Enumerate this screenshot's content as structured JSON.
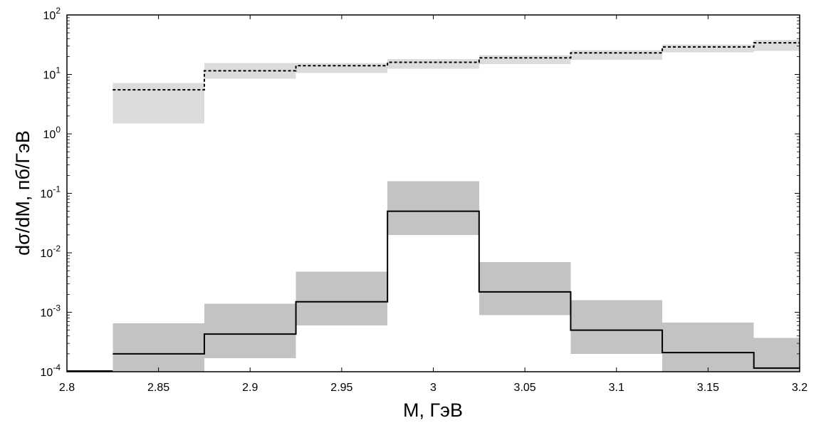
{
  "chart_data": {
    "type": "step",
    "xlabel": "M, ГэВ",
    "ylabel": "dσ/dM, пб/ГэВ",
    "xlim": [
      2.8,
      3.2
    ],
    "ylim": [
      0.0001,
      100
    ],
    "yscale": "log",
    "x_ticks": [
      "2.8",
      "2.85",
      "2.9",
      "2.95",
      "3",
      "3.05",
      "3.1",
      "3.15",
      "3.2"
    ],
    "y_ticks": [
      {
        "base": "10",
        "exp": "-4"
      },
      {
        "base": "10",
        "exp": "-3"
      },
      {
        "base": "10",
        "exp": "-2"
      },
      {
        "base": "10",
        "exp": "-1"
      },
      {
        "base": "10",
        "exp": "0"
      },
      {
        "base": "10",
        "exp": "1"
      },
      {
        "base": "10",
        "exp": "2"
      }
    ],
    "bin_edges": [
      2.825,
      2.875,
      2.925,
      2.975,
      3.025,
      3.075,
      3.125,
      3.175,
      3.2
    ],
    "series": [
      {
        "style": "dashed",
        "color": "#000000",
        "band_color": "#dcdcdc",
        "values": [
          5.5,
          11.5,
          14,
          16,
          19,
          23,
          29,
          34
        ],
        "band_low": [
          1.5,
          8.5,
          10.5,
          12.5,
          15,
          17.5,
          23.5,
          25
        ],
        "band_high": [
          7.2,
          15.5,
          15.5,
          18,
          21,
          25.5,
          32,
          38
        ]
      },
      {
        "style": "solid",
        "color": "#000000",
        "band_color": "#c3c3c3",
        "values": [
          0.0002,
          0.00043,
          0.0015,
          0.05,
          0.0022,
          0.0005,
          0.00021,
          0.000115
        ],
        "band_low": [
          0.0001,
          0.00017,
          0.0006,
          0.02,
          0.0009,
          0.0002,
          0.0001,
          0.0001
        ],
        "band_high": [
          0.00065,
          0.0014,
          0.0048,
          0.16,
          0.007,
          0.0016,
          0.00067,
          0.00037
        ]
      }
    ]
  }
}
